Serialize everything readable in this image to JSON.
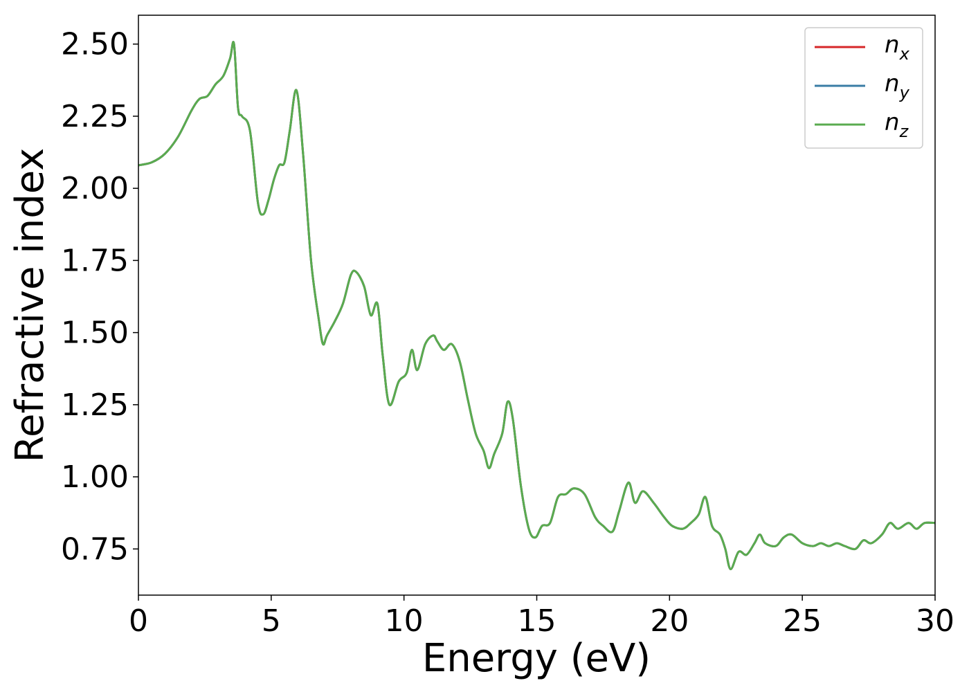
{
  "chart_data": {
    "type": "line",
    "title": "",
    "xlabel": "Energy (eV)",
    "ylabel": "Refractive index",
    "xlim": [
      0,
      30
    ],
    "ylim": [
      0.59,
      2.6
    ],
    "xticks": [
      0,
      5,
      10,
      15,
      20,
      25,
      30
    ],
    "xtick_labels": [
      "0",
      "5",
      "10",
      "15",
      "20",
      "25",
      "30"
    ],
    "yticks": [
      0.75,
      1.0,
      1.25,
      1.5,
      1.75,
      2.0,
      2.25,
      2.5
    ],
    "ytick_labels": [
      "0.75",
      "1.00",
      "1.25",
      "1.50",
      "1.75",
      "2.00",
      "2.25",
      "2.50"
    ],
    "grid": false,
    "legend_position": "top-right",
    "x": [
      0,
      0.5,
      1.0,
      1.5,
      2.0,
      2.3,
      2.6,
      2.9,
      3.2,
      3.45,
      3.6,
      3.75,
      3.9,
      4.2,
      4.5,
      4.7,
      4.9,
      5.1,
      5.3,
      5.5,
      5.7,
      5.95,
      6.2,
      6.5,
      6.8,
      6.95,
      7.1,
      7.4,
      7.7,
      8.0,
      8.2,
      8.5,
      8.75,
      9.0,
      9.2,
      9.45,
      9.8,
      10.1,
      10.3,
      10.5,
      10.8,
      11.1,
      11.25,
      11.5,
      11.8,
      12.1,
      12.4,
      12.7,
      13.0,
      13.2,
      13.4,
      13.7,
      13.9,
      14.1,
      14.4,
      14.7,
      14.95,
      15.2,
      15.5,
      15.8,
      16.1,
      16.4,
      16.8,
      17.2,
      17.5,
      17.85,
      18.1,
      18.45,
      18.7,
      19.0,
      19.4,
      19.8,
      20.1,
      20.5,
      20.8,
      21.1,
      21.35,
      21.6,
      21.9,
      22.1,
      22.3,
      22.6,
      22.9,
      23.2,
      23.4,
      23.6,
      24.0,
      24.3,
      24.6,
      25.0,
      25.4,
      25.7,
      26.0,
      26.3,
      26.6,
      27.0,
      27.3,
      27.6,
      28.0,
      28.3,
      28.6,
      29.0,
      29.3,
      29.6,
      30.0
    ],
    "series": [
      {
        "name": "nx",
        "color": "#d62728",
        "y": [
          2.08,
          2.09,
          2.12,
          2.18,
          2.27,
          2.31,
          2.32,
          2.36,
          2.39,
          2.45,
          2.5,
          2.28,
          2.25,
          2.2,
          1.95,
          1.91,
          1.96,
          2.03,
          2.08,
          2.09,
          2.2,
          2.34,
          2.12,
          1.75,
          1.54,
          1.46,
          1.49,
          1.54,
          1.6,
          1.7,
          1.71,
          1.66,
          1.56,
          1.6,
          1.42,
          1.25,
          1.33,
          1.36,
          1.44,
          1.37,
          1.46,
          1.49,
          1.47,
          1.44,
          1.46,
          1.4,
          1.27,
          1.15,
          1.09,
          1.03,
          1.08,
          1.15,
          1.26,
          1.2,
          0.97,
          0.82,
          0.79,
          0.83,
          0.84,
          0.93,
          0.94,
          0.96,
          0.94,
          0.86,
          0.83,
          0.81,
          0.88,
          0.98,
          0.91,
          0.95,
          0.91,
          0.86,
          0.83,
          0.82,
          0.84,
          0.87,
          0.93,
          0.83,
          0.8,
          0.75,
          0.68,
          0.74,
          0.73,
          0.77,
          0.8,
          0.77,
          0.76,
          0.79,
          0.8,
          0.77,
          0.76,
          0.77,
          0.76,
          0.77,
          0.76,
          0.75,
          0.78,
          0.77,
          0.8,
          0.84,
          0.82,
          0.84,
          0.82,
          0.84,
          0.84
        ]
      },
      {
        "name": "ny",
        "color": "#3a7ca5",
        "y": [
          2.08,
          2.09,
          2.12,
          2.18,
          2.27,
          2.31,
          2.32,
          2.36,
          2.39,
          2.45,
          2.5,
          2.28,
          2.25,
          2.2,
          1.95,
          1.91,
          1.96,
          2.03,
          2.08,
          2.09,
          2.2,
          2.34,
          2.12,
          1.75,
          1.54,
          1.46,
          1.49,
          1.54,
          1.6,
          1.7,
          1.71,
          1.66,
          1.56,
          1.6,
          1.42,
          1.25,
          1.33,
          1.36,
          1.44,
          1.37,
          1.46,
          1.49,
          1.47,
          1.44,
          1.46,
          1.4,
          1.27,
          1.15,
          1.09,
          1.03,
          1.08,
          1.15,
          1.26,
          1.2,
          0.97,
          0.82,
          0.79,
          0.83,
          0.84,
          0.93,
          0.94,
          0.96,
          0.94,
          0.86,
          0.83,
          0.81,
          0.88,
          0.98,
          0.91,
          0.95,
          0.91,
          0.86,
          0.83,
          0.82,
          0.84,
          0.87,
          0.93,
          0.83,
          0.8,
          0.75,
          0.68,
          0.74,
          0.73,
          0.77,
          0.8,
          0.77,
          0.76,
          0.79,
          0.8,
          0.77,
          0.76,
          0.77,
          0.76,
          0.77,
          0.76,
          0.75,
          0.78,
          0.77,
          0.8,
          0.84,
          0.82,
          0.84,
          0.82,
          0.84,
          0.84
        ]
      },
      {
        "name": "nz",
        "color": "#5aab4f",
        "y": [
          2.08,
          2.09,
          2.12,
          2.18,
          2.27,
          2.31,
          2.32,
          2.36,
          2.39,
          2.45,
          2.5,
          2.28,
          2.25,
          2.2,
          1.95,
          1.91,
          1.96,
          2.03,
          2.08,
          2.09,
          2.2,
          2.34,
          2.12,
          1.75,
          1.54,
          1.46,
          1.49,
          1.54,
          1.6,
          1.7,
          1.71,
          1.66,
          1.56,
          1.6,
          1.42,
          1.25,
          1.33,
          1.36,
          1.44,
          1.37,
          1.46,
          1.49,
          1.47,
          1.44,
          1.46,
          1.4,
          1.27,
          1.15,
          1.09,
          1.03,
          1.08,
          1.15,
          1.26,
          1.2,
          0.97,
          0.82,
          0.79,
          0.83,
          0.84,
          0.93,
          0.94,
          0.96,
          0.94,
          0.86,
          0.83,
          0.81,
          0.88,
          0.98,
          0.91,
          0.95,
          0.91,
          0.86,
          0.83,
          0.82,
          0.84,
          0.87,
          0.93,
          0.83,
          0.8,
          0.75,
          0.68,
          0.74,
          0.73,
          0.77,
          0.8,
          0.77,
          0.76,
          0.79,
          0.8,
          0.77,
          0.76,
          0.77,
          0.76,
          0.77,
          0.76,
          0.75,
          0.78,
          0.77,
          0.8,
          0.84,
          0.82,
          0.84,
          0.82,
          0.84,
          0.84
        ]
      }
    ],
    "legend": [
      {
        "base": "n",
        "sub": "x",
        "color": "#d62728"
      },
      {
        "base": "n",
        "sub": "y",
        "color": "#3a7ca5"
      },
      {
        "base": "n",
        "sub": "z",
        "color": "#5aab4f"
      }
    ]
  }
}
